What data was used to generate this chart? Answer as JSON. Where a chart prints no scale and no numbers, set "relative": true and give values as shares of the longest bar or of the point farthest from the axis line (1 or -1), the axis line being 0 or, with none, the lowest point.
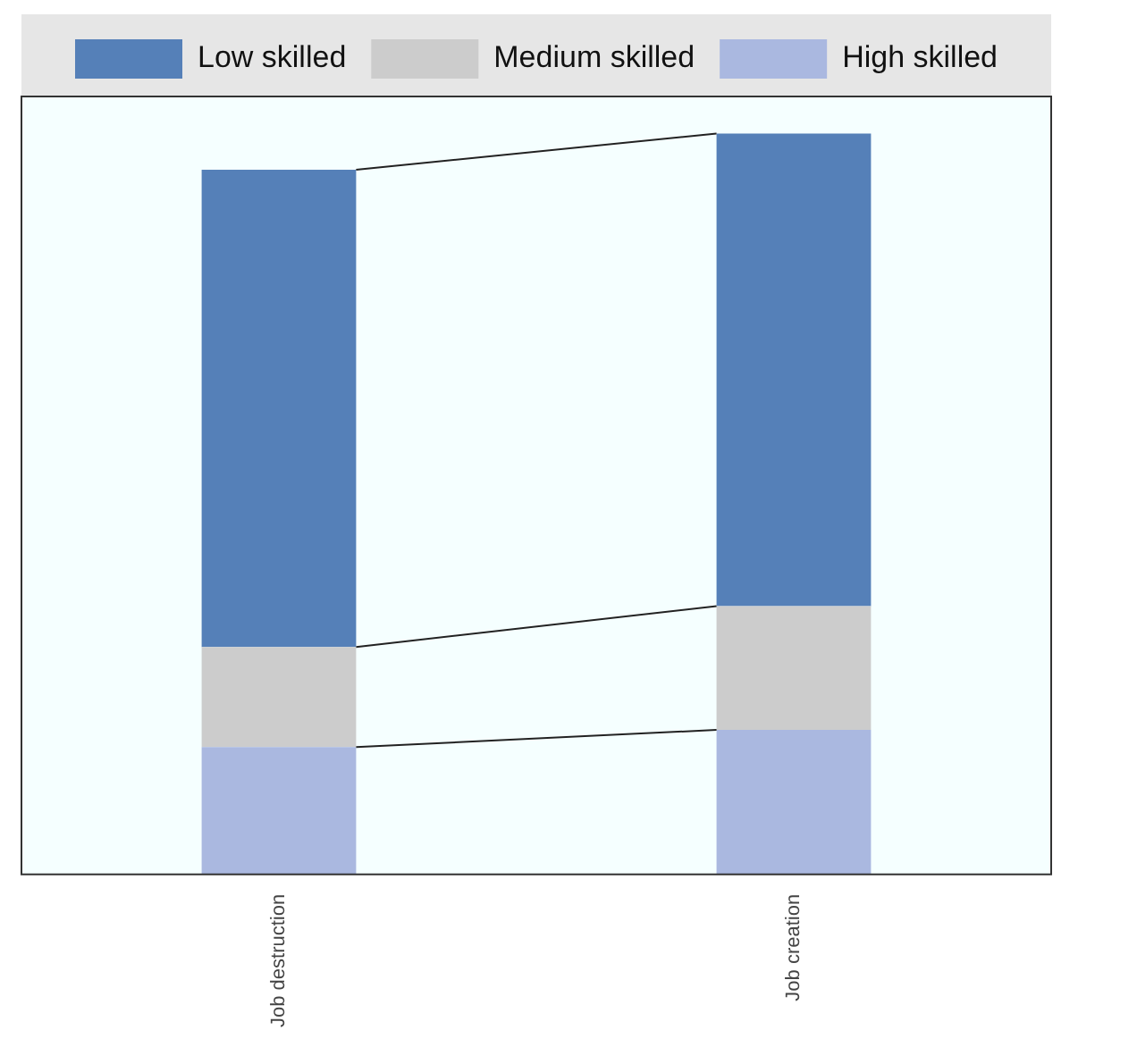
{
  "chart_data": {
    "type": "bar",
    "stacked": true,
    "relative": true,
    "categories": [
      "Job destruction",
      "Job creation"
    ],
    "series": [
      {
        "name": "High skilled",
        "color": "#aab8e0",
        "values": [
          0.172,
          0.195
        ]
      },
      {
        "name": "Medium skilled",
        "color": "#cccccc",
        "values": [
          0.135,
          0.167
        ]
      },
      {
        "name": "Low skilled",
        "color": "#5580b8",
        "values": [
          0.644,
          0.638
        ]
      }
    ],
    "legend": "top",
    "grid": false
  }
}
